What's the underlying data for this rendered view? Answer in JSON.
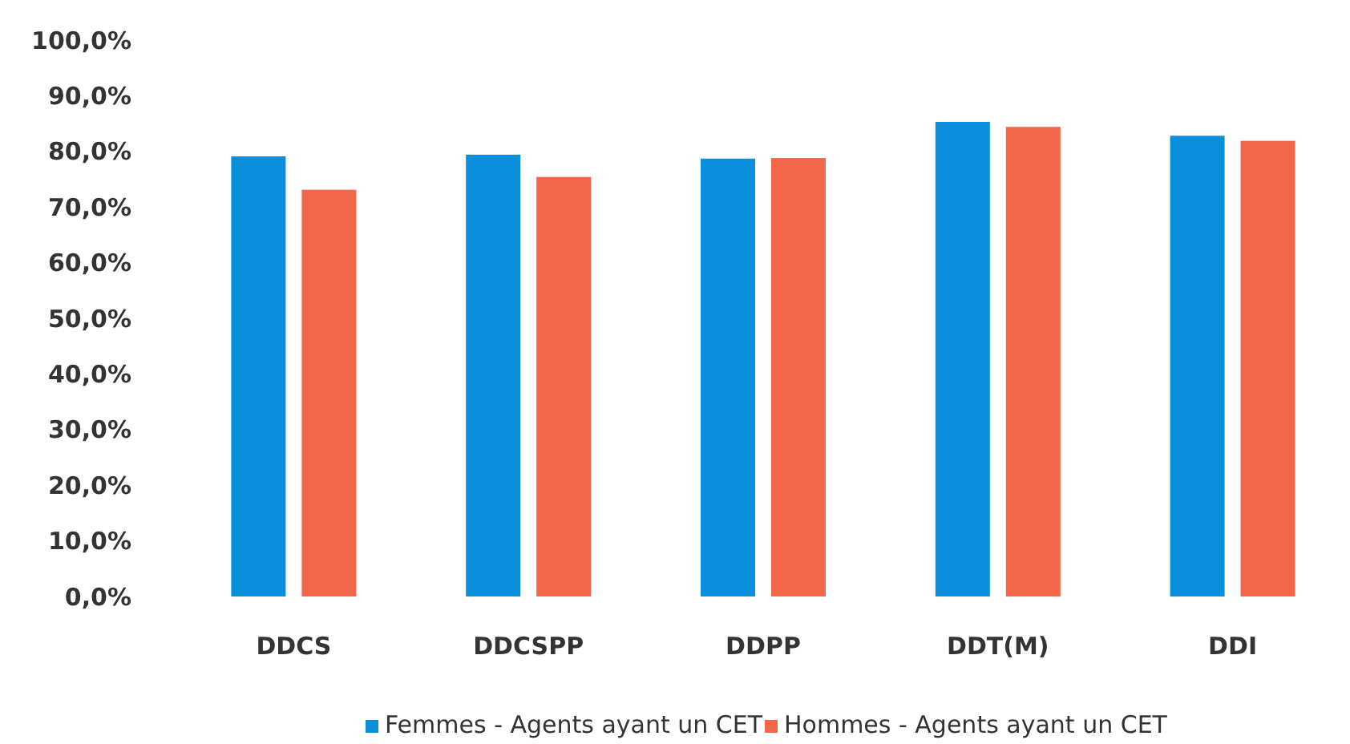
{
  "chart_data": {
    "type": "bar",
    "categories": [
      "DDCS",
      "DDCSPP",
      "DDPP",
      "DDT(M)",
      "DDI"
    ],
    "series": [
      {
        "name": "Femmes - Agents ayant un CET",
        "color": "#0a8fdd",
        "values": [
          79.1,
          79.4,
          78.7,
          85.3,
          82.8
        ]
      },
      {
        "name": "Hommes - Agents ayant un CET",
        "color": "#f2674a",
        "values": [
          73.1,
          75.4,
          78.8,
          84.4,
          81.9
        ]
      }
    ],
    "ylim": [
      0,
      100
    ],
    "yticks": [
      {
        "value": 0,
        "label": "0,0%"
      },
      {
        "value": 10,
        "label": "10,0%"
      },
      {
        "value": 20,
        "label": "20,0%"
      },
      {
        "value": 30,
        "label": "30,0%"
      },
      {
        "value": 40,
        "label": "40,0%"
      },
      {
        "value": 50,
        "label": "50,0%"
      },
      {
        "value": 60,
        "label": "60,0%"
      },
      {
        "value": 70,
        "label": "70,0%"
      },
      {
        "value": 80,
        "label": "80,0%"
      },
      {
        "value": 90,
        "label": "90,0%"
      },
      {
        "value": 100,
        "label": "100,0%"
      }
    ],
    "grid": false,
    "legend": "bottom"
  }
}
